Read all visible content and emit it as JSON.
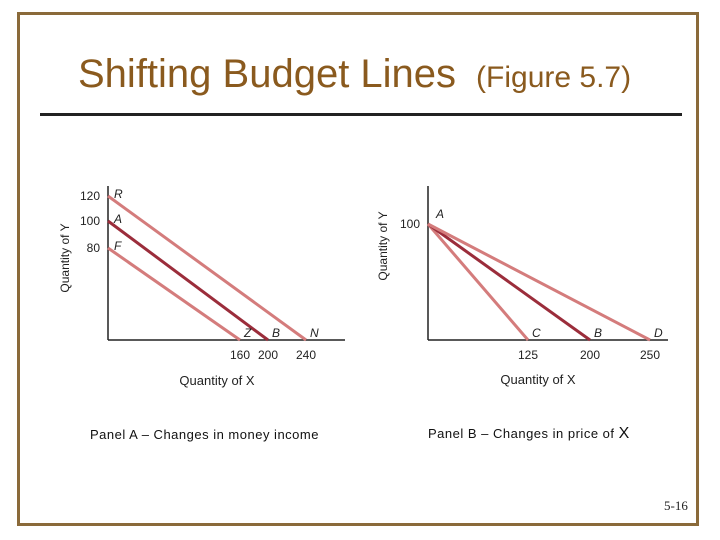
{
  "slide": {
    "title": "Shifting Budget Lines",
    "subtitle": "(Figure 5.7)",
    "page_number": "5-16",
    "panel_a_caption": "Panel A – Changes in money income",
    "panel_b_caption_main": "Panel B – Changes in price of ",
    "panel_b_caption_x": "X"
  },
  "colors": {
    "title": "#8a5a1e",
    "frame": "#8a6a3a",
    "line_pink": "#d47c7c",
    "line_dark": "#9b2d3b"
  },
  "chart_data": [
    {
      "type": "line",
      "xlabel": "Quantity of X",
      "ylabel": "Quantity of Y",
      "x_ticks": [
        "160",
        "200",
        "240"
      ],
      "y_ticks": [
        "120",
        "100",
        "80"
      ],
      "series": [
        {
          "start_label": "R",
          "end_label": "N",
          "y_intercept": 120,
          "x_intercept": 240,
          "color": "pink"
        },
        {
          "start_label": "A",
          "end_label": "B",
          "y_intercept": 100,
          "x_intercept": 200,
          "color": "dark"
        },
        {
          "start_label": "F",
          "end_label": "Z",
          "y_intercept": 80,
          "x_intercept": 160,
          "color": "pink"
        }
      ]
    },
    {
      "type": "line",
      "xlabel": "Quantity of X",
      "ylabel": "Quantity of Y",
      "x_ticks": [
        "125",
        "200",
        "250"
      ],
      "y_ticks": [
        "100"
      ],
      "series": [
        {
          "start_label": "A",
          "end_label": "C",
          "y_intercept": 100,
          "x_intercept": 125,
          "color": "pink"
        },
        {
          "start_label": "",
          "end_label": "B",
          "y_intercept": 100,
          "x_intercept": 200,
          "color": "dark"
        },
        {
          "start_label": "",
          "end_label": "D",
          "y_intercept": 100,
          "x_intercept": 250,
          "color": "pink"
        }
      ]
    }
  ]
}
